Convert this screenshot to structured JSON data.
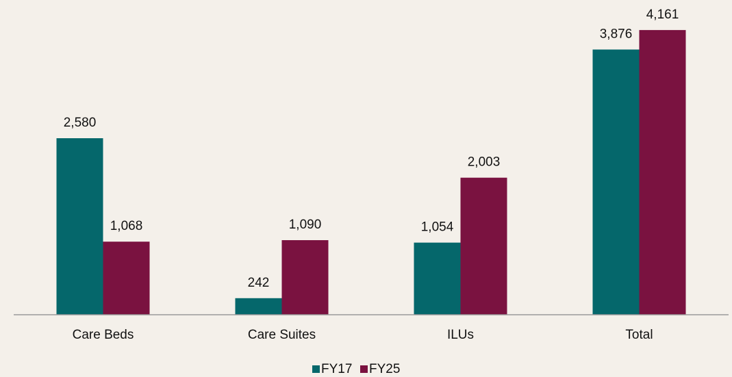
{
  "chart_data": {
    "type": "bar",
    "categories": [
      "Care Beds",
      "Care Suites",
      "ILUs",
      "Total"
    ],
    "series": [
      {
        "name": "FY17",
        "color": "#05676b",
        "values": [
          2580,
          242,
          1054,
          3876
        ],
        "value_labels": [
          "2,580",
          "242",
          "1,054",
          "3,876"
        ]
      },
      {
        "name": "FY25",
        "color": "#7a1240",
        "values": [
          1068,
          1090,
          2003,
          4161
        ],
        "value_labels": [
          "1,068",
          "1,090",
          "2,003",
          "4,161"
        ]
      }
    ],
    "ylim": [
      0,
      4500
    ],
    "legend": "bottom"
  }
}
